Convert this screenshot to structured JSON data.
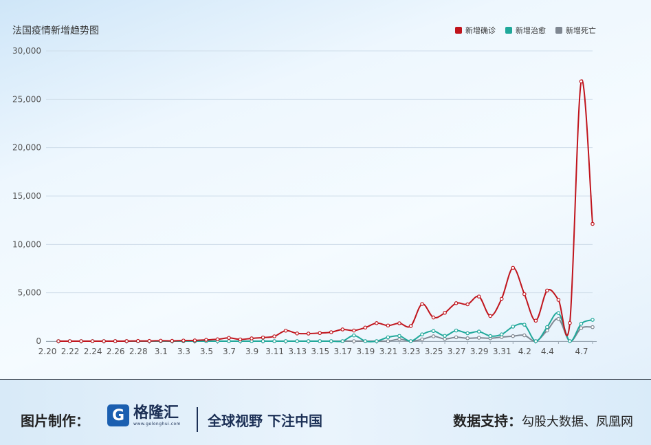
{
  "footer": {
    "credit_label": "图片制作：",
    "logo_text": "格隆汇",
    "logo_url": "www.gelonghui.com",
    "slogan": "全球视野 下注中国",
    "source_label": "数据支持：",
    "source_value": "勾股大数据、凤凰网"
  },
  "colors": {
    "confirmed": "#c0141c",
    "recovered": "#1fa89a",
    "deaths": "#7f8791",
    "grid": "#cfdde9",
    "axis_text": "#555555"
  },
  "chart_data": {
    "type": "line",
    "title": "法国疫情新增趋势图",
    "xlabel": "",
    "ylabel": "",
    "ylim": [
      0,
      30000
    ],
    "yticks": [
      0,
      5000,
      10000,
      15000,
      20000,
      25000,
      30000
    ],
    "ytick_labels": [
      "0",
      "5,000",
      "10,000",
      "15,000",
      "20,000",
      "25,000",
      "30,000"
    ],
    "grid": true,
    "legend_position": "top-right",
    "x": [
      "2.20",
      "2.21",
      "2.22",
      "2.23",
      "2.24",
      "2.25",
      "2.26",
      "2.27",
      "2.28",
      "2.29",
      "3.1",
      "3.2",
      "3.3",
      "3.4",
      "3.5",
      "3.6",
      "3.7",
      "3.8",
      "3.9",
      "3.10",
      "3.11",
      "3.12",
      "3.13",
      "3.14",
      "3.15",
      "3.16",
      "3.17",
      "3.18",
      "3.19",
      "3.20",
      "3.21",
      "3.22",
      "3.23",
      "3.24",
      "3.25",
      "3.26",
      "3.27",
      "3.28",
      "3.29",
      "3.30",
      "3.31",
      "4.1",
      "4.2",
      "4.3",
      "4.4",
      "4.5",
      "4.6",
      "4.7"
    ],
    "xtick_labels": [
      "2.20",
      "2.22",
      "2.24",
      "2.26",
      "2.28",
      "3.1",
      "3.3",
      "3.5",
      "3.7",
      "3.9",
      "3.11",
      "3.13",
      "3.15",
      "3.17",
      "3.19",
      "3.21",
      "3.23",
      "3.25",
      "3.27",
      "3.29",
      "3.31",
      "4.2",
      "4.4",
      "4.7"
    ],
    "series": [
      {
        "name": "新增确诊",
        "color": "#c0141c",
        "values": [
          0,
          0,
          0,
          0,
          0,
          2,
          6,
          20,
          19,
          43,
          30,
          61,
          73,
          138,
          190,
          336,
          177,
          286,
          372,
          497,
          1085,
          794,
          785,
          838,
          924,
          1210,
          1097,
          1404,
          1861,
          1617,
          1847,
          1559,
          3838,
          2446,
          2931,
          3922,
          3809,
          4611,
          2599,
          4376,
          7578,
          4861,
          2116,
          5233,
          4267,
          1873,
          26849,
          12118
        ]
      },
      {
        "name": "新增治愈",
        "color": "#1fa89a",
        "values": [
          0,
          0,
          0,
          0,
          0,
          0,
          0,
          0,
          0,
          0,
          0,
          0,
          0,
          0,
          0,
          0,
          0,
          0,
          0,
          0,
          0,
          0,
          0,
          0,
          0,
          0,
          590,
          0,
          0,
          400,
          540,
          0,
          700,
          1050,
          550,
          1100,
          820,
          990,
          530,
          700,
          1500,
          1700,
          0,
          1450,
          2900,
          0,
          1800,
          2200
        ]
      },
      {
        "name": "新增死亡",
        "color": "#7f8791",
        "values": [
          0,
          0,
          0,
          0,
          0,
          0,
          0,
          0,
          0,
          0,
          0,
          0,
          0,
          0,
          0,
          0,
          0,
          0,
          0,
          0,
          0,
          0,
          0,
          0,
          0,
          0,
          0,
          0,
          0,
          0,
          190,
          0,
          180,
          500,
          230,
          400,
          300,
          350,
          300,
          420,
          520,
          600,
          0,
          1100,
          2300,
          0,
          1350,
          1450
        ]
      }
    ]
  }
}
